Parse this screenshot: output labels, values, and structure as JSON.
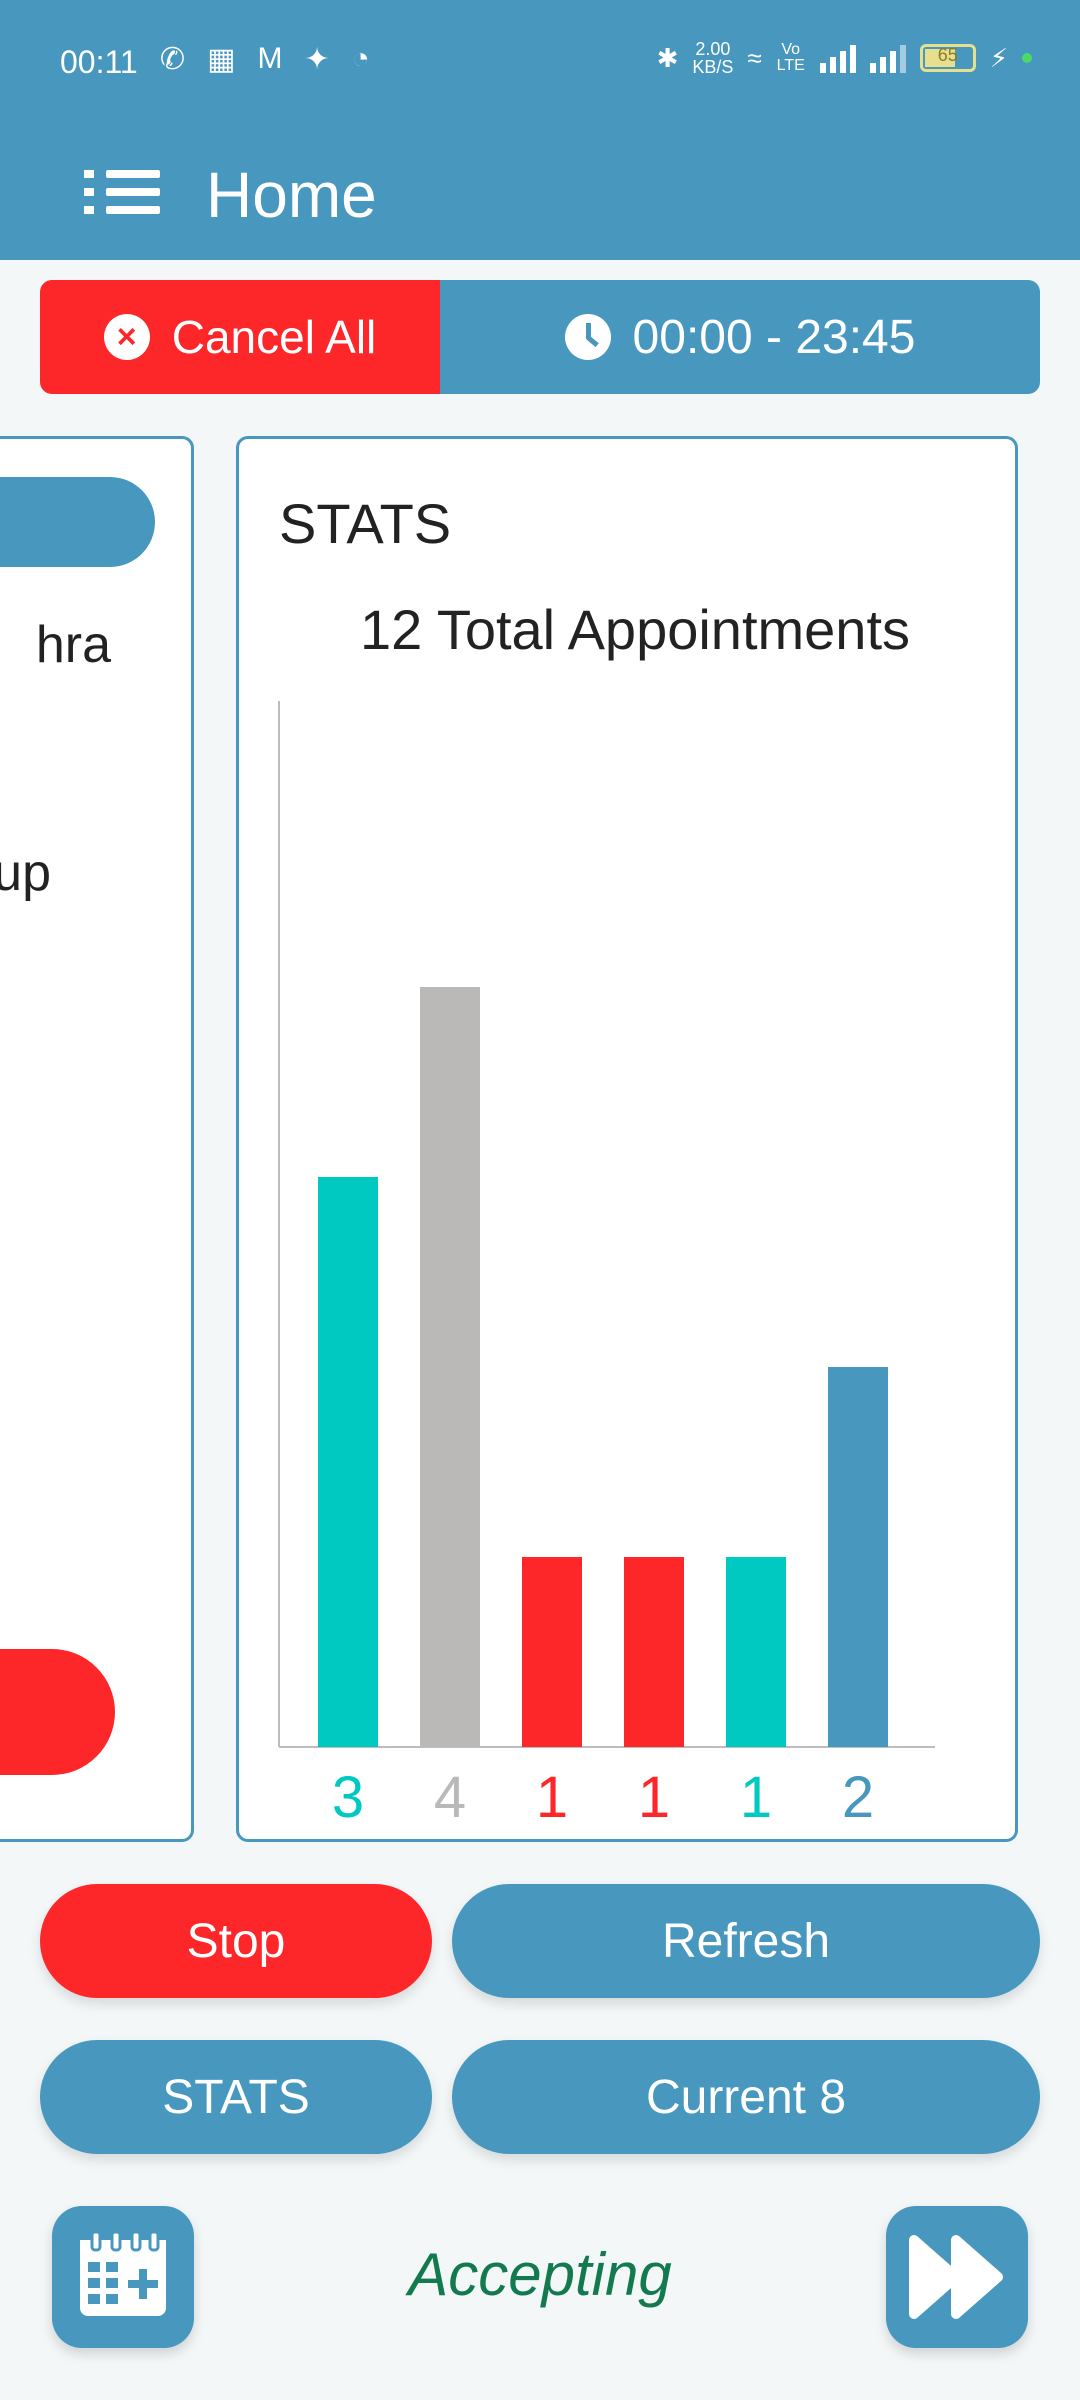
{
  "status_bar": {
    "time": "00:11",
    "net_speed_value": "2.00",
    "net_speed_unit": "KB/S",
    "volte": "Vo LTE",
    "battery_level": "65"
  },
  "app_bar": {
    "title": "Home"
  },
  "toolbar": {
    "cancel_all_label": "Cancel All",
    "time_range": "00:00 - 23:45"
  },
  "left_card": {
    "line1": "hra",
    "line2": "up"
  },
  "stats_card": {
    "title": "STATS",
    "subtitle": "12 Total Appointments"
  },
  "chart_data": {
    "type": "bar",
    "title": "12 Total Appointments",
    "categories": [
      "3",
      "4",
      "1",
      "1",
      "1",
      "2"
    ],
    "values": [
      3,
      4,
      1,
      1,
      1,
      2
    ],
    "colors": [
      "#00c9c1",
      "#bab9b8",
      "#fd2629",
      "#fd2629",
      "#00c9c1",
      "#4897be"
    ],
    "ylim": [
      0,
      5.5
    ],
    "grid": false
  },
  "buttons": {
    "stop": "Stop",
    "refresh": "Refresh",
    "stats": "STATS",
    "current": "Current  8"
  },
  "footer": {
    "status_text": "Accepting"
  },
  "colors": {
    "primary": "#4897be",
    "danger": "#fd2629",
    "accent": "#00c9c1",
    "neutral": "#bab9b8",
    "success": "#127a4e"
  }
}
